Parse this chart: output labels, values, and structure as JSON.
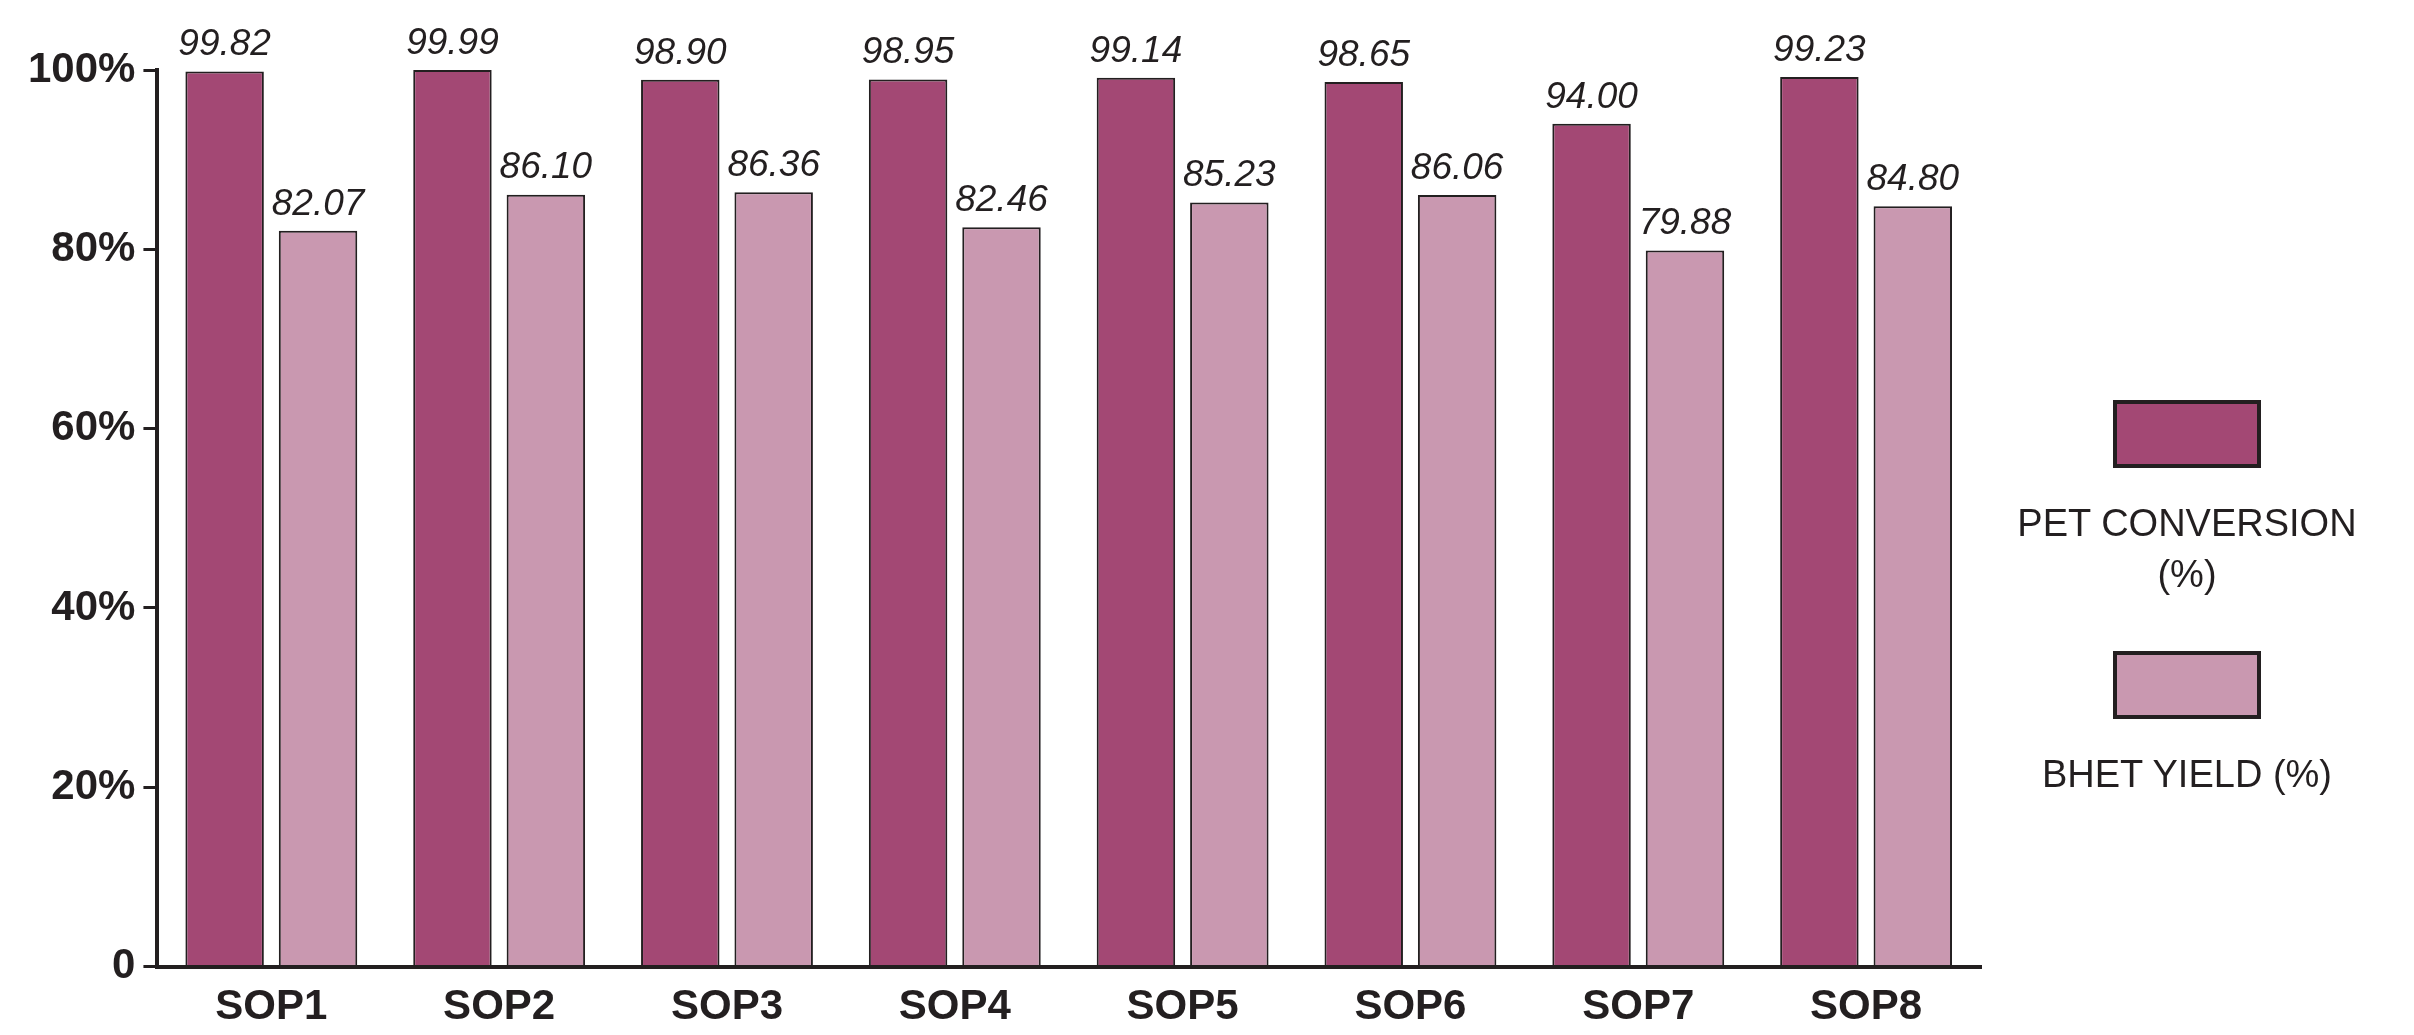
{
  "chart_data": {
    "type": "bar",
    "categories": [
      "SOP1",
      "SOP2",
      "SOP3",
      "SOP4",
      "SOP5",
      "SOP6",
      "SOP7",
      "SOP8"
    ],
    "series": [
      {
        "name": "PET CONVERSION (%)",
        "color": "#a34874",
        "values": [
          99.82,
          99.99,
          98.9,
          98.95,
          99.14,
          98.65,
          94.0,
          99.23
        ],
        "value_labels": [
          "99.82",
          "99.99",
          "98.90",
          "98.95",
          "99.14",
          "98.65",
          "94.00",
          "99.23"
        ]
      },
      {
        "name": "BHET YIELD (%)",
        "color": "#c998b0",
        "values": [
          82.07,
          86.1,
          86.36,
          82.46,
          85.23,
          86.06,
          79.88,
          84.8
        ],
        "value_labels": [
          "82.07",
          "86.10",
          "86.36",
          "82.46",
          "85.23",
          "86.06",
          "79.88",
          "84.80"
        ]
      }
    ],
    "ylim": [
      0,
      100
    ],
    "yticks": [
      {
        "value": 0,
        "label": "0"
      },
      {
        "value": 20,
        "label": "20%"
      },
      {
        "value": 40,
        "label": "40%"
      },
      {
        "value": 60,
        "label": "60%"
      },
      {
        "value": 80,
        "label": "80%"
      },
      {
        "value": 100,
        "label": "100%"
      }
    ],
    "grid": false,
    "legend": "right"
  }
}
